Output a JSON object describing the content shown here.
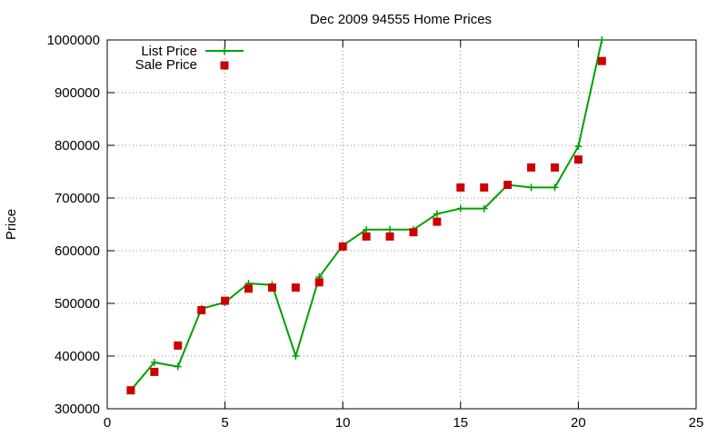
{
  "chart_data": {
    "type": "line",
    "title": "Dec 2009 94555 Home Prices",
    "xlabel": "",
    "ylabel": "Price",
    "xlim": [
      0,
      25
    ],
    "ylim": [
      300000,
      1000000
    ],
    "x_ticks": [
      0,
      5,
      10,
      15,
      20,
      25
    ],
    "y_ticks": [
      300000,
      400000,
      500000,
      600000,
      700000,
      800000,
      900000,
      1000000
    ],
    "grid": true,
    "legend_position": "top-left",
    "series": [
      {
        "name": "List Price",
        "style": "line+cross",
        "color": "#00a000",
        "x": [
          1,
          2,
          3,
          4,
          5,
          6,
          7,
          8,
          9,
          10,
          11,
          12,
          13,
          14,
          15,
          16,
          17,
          18,
          19,
          20,
          21
        ],
        "y": [
          335000,
          388000,
          380000,
          490000,
          502000,
          538000,
          535000,
          400000,
          550000,
          610000,
          640000,
          640000,
          640000,
          670000,
          680000,
          680000,
          725000,
          720000,
          720000,
          798000,
          1000000
        ]
      },
      {
        "name": "Sale Price",
        "style": "square",
        "color": "#cc0000",
        "x": [
          1,
          2,
          3,
          4,
          5,
          6,
          7,
          8,
          9,
          10,
          11,
          12,
          13,
          14,
          15,
          16,
          17,
          18,
          19,
          20,
          21
        ],
        "y": [
          335000,
          370000,
          420000,
          487000,
          505000,
          528000,
          530000,
          530000,
          540000,
          608000,
          627000,
          627000,
          635000,
          655000,
          720000,
          720000,
          725000,
          758000,
          758000,
          773000,
          960000
        ]
      }
    ]
  }
}
